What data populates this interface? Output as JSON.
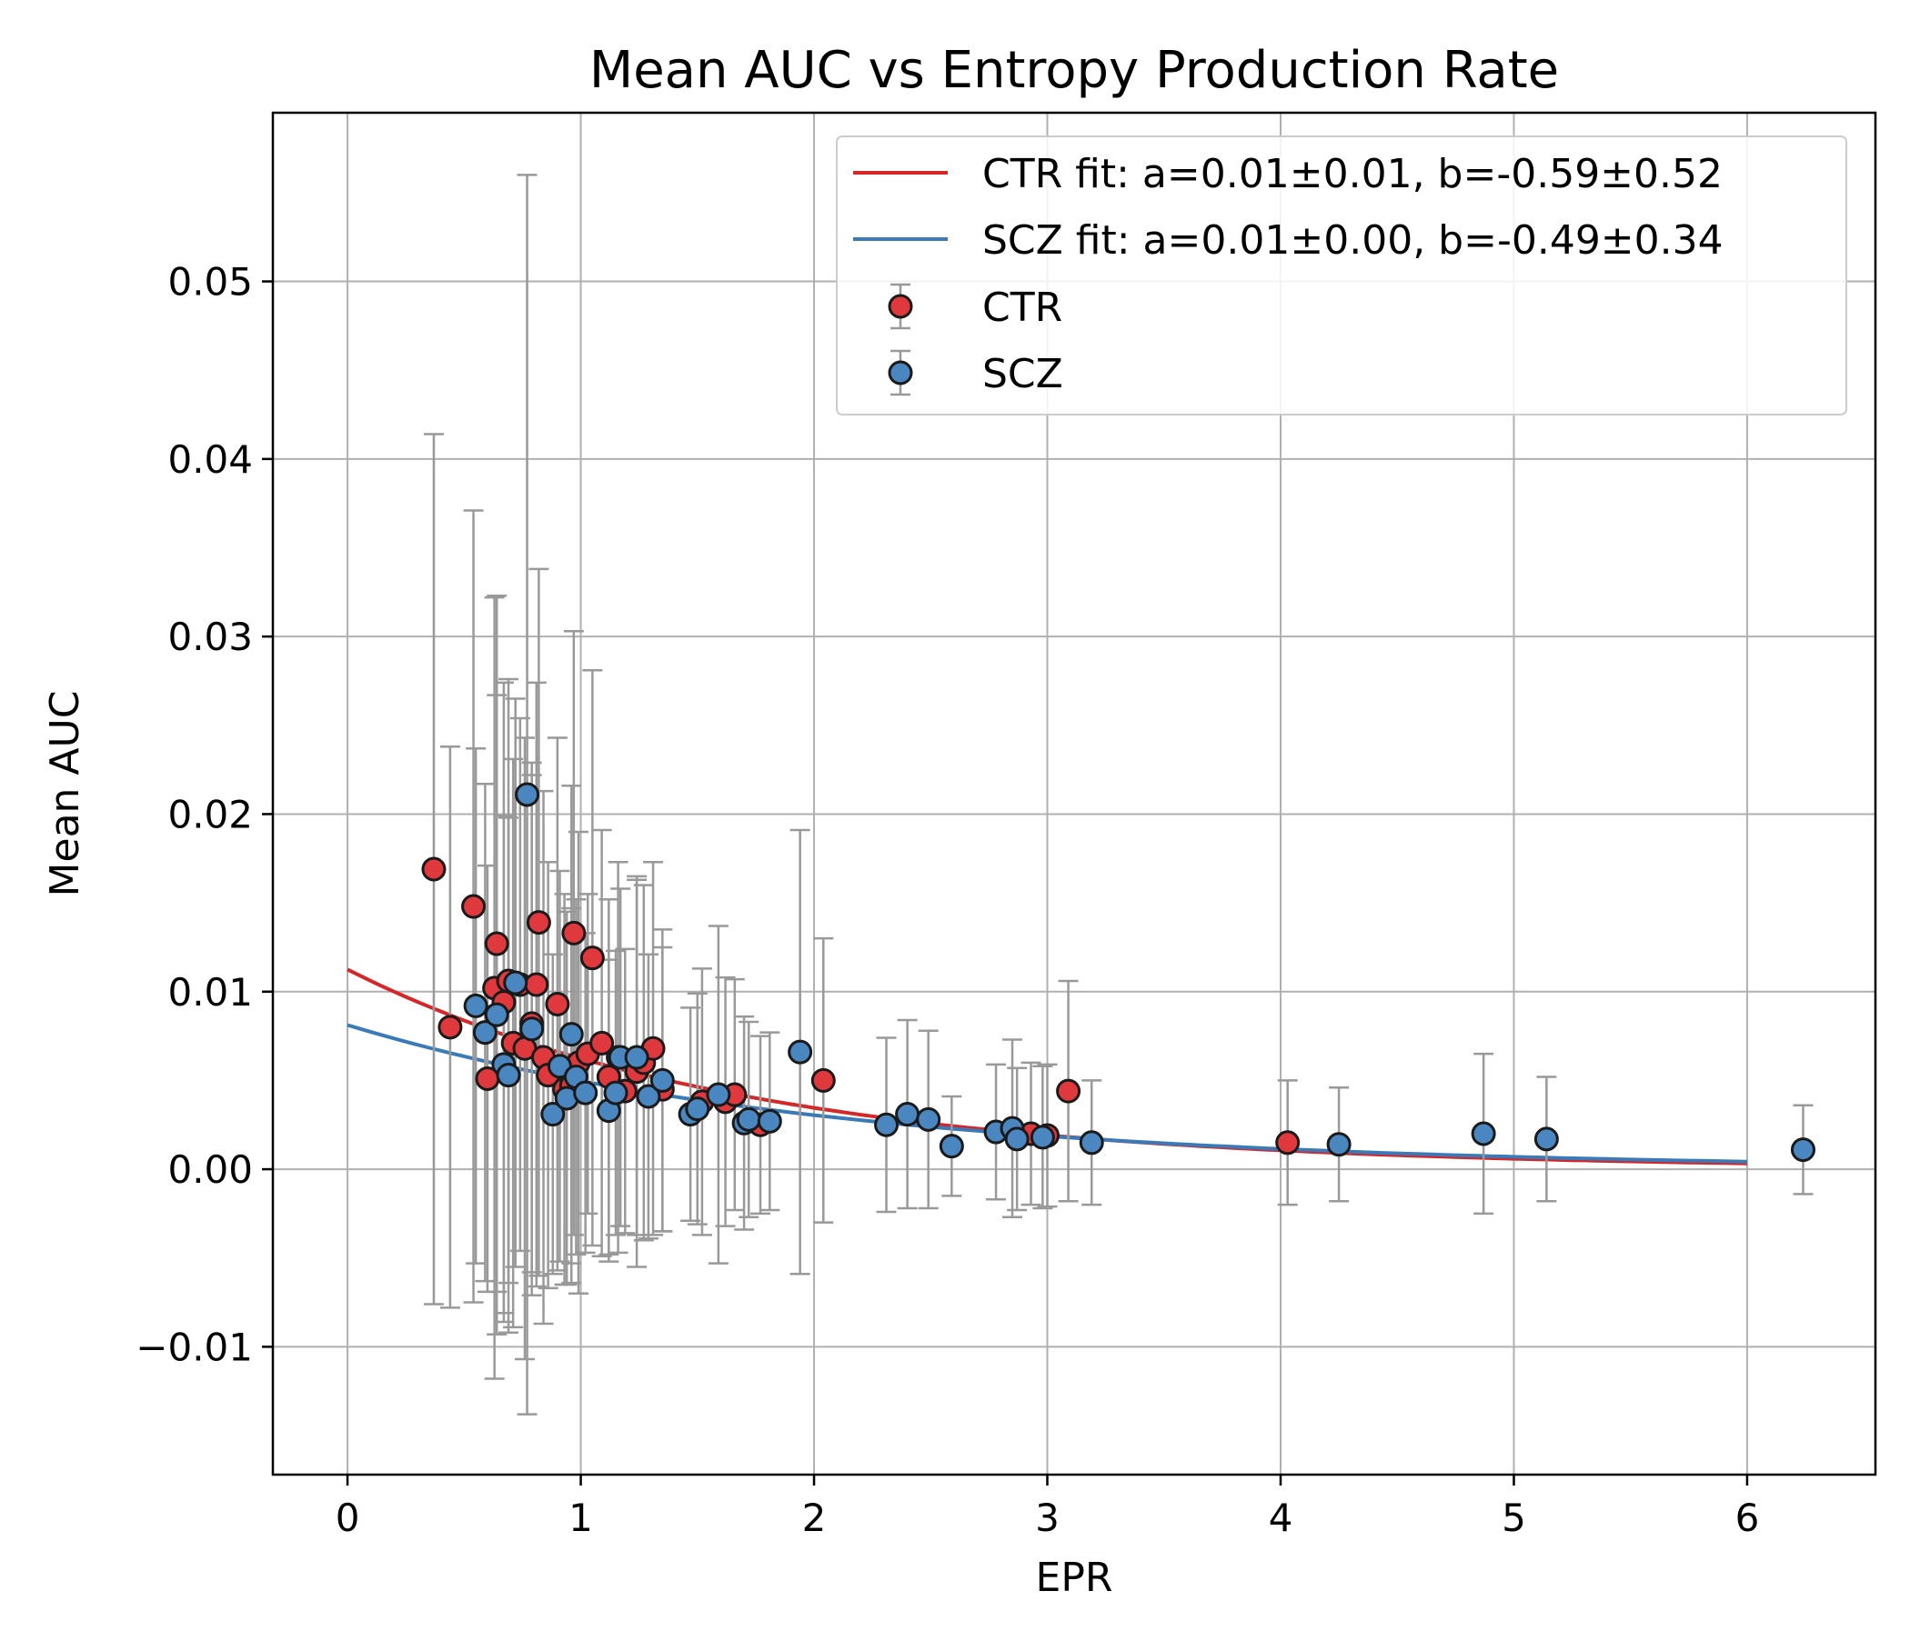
{
  "chart_data": {
    "type": "scatter",
    "title": "Mean AUC vs Entropy Production Rate",
    "xlabel": "EPR",
    "ylabel": "Mean AUC",
    "xlim": [
      -0.32,
      6.55
    ],
    "ylim": [
      -0.0172,
      0.0595
    ],
    "xticks": [
      0,
      1,
      2,
      3,
      4,
      5,
      6
    ],
    "yticks": [
      -0.01,
      0.0,
      0.01,
      0.02,
      0.03,
      0.04,
      0.05
    ],
    "ytick_labels": [
      "−0.01",
      "0.00",
      "0.01",
      "0.02",
      "0.03",
      "0.04",
      "0.05"
    ],
    "grid": true,
    "legend_position": "upper-right",
    "colors": {
      "CTR": "#e0393d",
      "SCZ": "#4a86c0",
      "CTR_fit": "#d62728",
      "SCZ_fit": "#3a7ab8",
      "errorbar": "#999999"
    },
    "fits": [
      {
        "name": "CTR fit: a=0.01±0.01, b=-0.59±0.52",
        "group": "CTR",
        "a": 0.01125,
        "b": -0.59,
        "x_range": [
          0,
          6
        ]
      },
      {
        "name": "SCZ fit: a=0.01±0.00, b=-0.49±0.34",
        "group": "SCZ",
        "a": 0.00812,
        "b": -0.49,
        "x_range": [
          0,
          6
        ]
      }
    ],
    "series": [
      {
        "name": "CTR",
        "points": [
          {
            "x": 0.37,
            "y": 0.0169,
            "err": 0.0245
          },
          {
            "x": 0.44,
            "y": 0.008,
            "err": 0.0158
          },
          {
            "x": 0.54,
            "y": 0.0148,
            "err": 0.0223
          },
          {
            "x": 0.6,
            "y": 0.0051,
            "err": 0.012
          },
          {
            "x": 0.63,
            "y": 0.0102,
            "err": 0.022
          },
          {
            "x": 0.64,
            "y": 0.0127,
            "err": 0.0196
          },
          {
            "x": 0.67,
            "y": 0.0094,
            "err": 0.018
          },
          {
            "x": 0.69,
            "y": 0.0106,
            "err": 0.017
          },
          {
            "x": 0.71,
            "y": 0.0071,
            "err": 0.016
          },
          {
            "x": 0.74,
            "y": 0.0104,
            "err": 0.015
          },
          {
            "x": 0.76,
            "y": 0.0068,
            "err": 0.0175
          },
          {
            "x": 0.79,
            "y": 0.0082,
            "err": 0.014
          },
          {
            "x": 0.81,
            "y": 0.0104,
            "err": 0.017
          },
          {
            "x": 0.82,
            "y": 0.0139,
            "err": 0.0199
          },
          {
            "x": 0.84,
            "y": 0.0063,
            "err": 0.015
          },
          {
            "x": 0.86,
            "y": 0.0053,
            "err": 0.012
          },
          {
            "x": 0.9,
            "y": 0.0093,
            "err": 0.015
          },
          {
            "x": 0.93,
            "y": 0.0045,
            "err": 0.011
          },
          {
            "x": 0.96,
            "y": 0.0047,
            "err": 0.01
          },
          {
            "x": 0.97,
            "y": 0.0133,
            "err": 0.017
          },
          {
            "x": 0.99,
            "y": 0.006,
            "err": 0.013
          },
          {
            "x": 1.03,
            "y": 0.0065,
            "err": 0.009
          },
          {
            "x": 1.05,
            "y": 0.0119,
            "err": 0.0162
          },
          {
            "x": 1.09,
            "y": 0.0071,
            "err": 0.012
          },
          {
            "x": 1.12,
            "y": 0.0052,
            "err": 0.01
          },
          {
            "x": 1.16,
            "y": 0.0063,
            "err": 0.011
          },
          {
            "x": 1.19,
            "y": 0.0044,
            "err": 0.008
          },
          {
            "x": 1.24,
            "y": 0.0055,
            "err": 0.011
          },
          {
            "x": 1.27,
            "y": 0.006,
            "err": 0.01
          },
          {
            "x": 1.31,
            "y": 0.0068,
            "err": 0.0105
          },
          {
            "x": 1.35,
            "y": 0.0045,
            "err": 0.008
          },
          {
            "x": 1.52,
            "y": 0.0038,
            "err": 0.0075
          },
          {
            "x": 1.62,
            "y": 0.0038,
            "err": 0.007
          },
          {
            "x": 1.66,
            "y": 0.0042,
            "err": 0.0065
          },
          {
            "x": 1.77,
            "y": 0.0025,
            "err": 0.005
          },
          {
            "x": 2.04,
            "y": 0.005,
            "err": 0.008
          },
          {
            "x": 2.93,
            "y": 0.002,
            "err": 0.004
          },
          {
            "x": 3.0,
            "y": 0.0019,
            "err": 0.004
          },
          {
            "x": 3.09,
            "y": 0.0044,
            "err": 0.0062
          },
          {
            "x": 4.03,
            "y": 0.0015,
            "err": 0.0035
          }
        ]
      },
      {
        "name": "SCZ",
        "points": [
          {
            "x": 0.55,
            "y": 0.0092,
            "err": 0.0145
          },
          {
            "x": 0.59,
            "y": 0.0077,
            "err": 0.014
          },
          {
            "x": 0.64,
            "y": 0.0087,
            "err": 0.018
          },
          {
            "x": 0.67,
            "y": 0.0059,
            "err": 0.014
          },
          {
            "x": 0.69,
            "y": 0.0053,
            "err": 0.0145
          },
          {
            "x": 0.72,
            "y": 0.0105,
            "err": 0.016
          },
          {
            "x": 0.77,
            "y": 0.0211,
            "err": 0.0349
          },
          {
            "x": 0.79,
            "y": 0.0079,
            "err": 0.015
          },
          {
            "x": 0.88,
            "y": 0.0031,
            "err": 0.009
          },
          {
            "x": 0.91,
            "y": 0.0058,
            "err": 0.011
          },
          {
            "x": 0.94,
            "y": 0.004,
            "err": 0.0105
          },
          {
            "x": 0.96,
            "y": 0.0076,
            "err": 0.014
          },
          {
            "x": 0.98,
            "y": 0.0052,
            "err": 0.01
          },
          {
            "x": 1.02,
            "y": 0.0043,
            "err": 0.009
          },
          {
            "x": 1.12,
            "y": 0.0033,
            "err": 0.0085
          },
          {
            "x": 1.15,
            "y": 0.0043,
            "err": 0.008
          },
          {
            "x": 1.17,
            "y": 0.0063,
            "err": 0.0095
          },
          {
            "x": 1.24,
            "y": 0.0063,
            "err": 0.01
          },
          {
            "x": 1.29,
            "y": 0.0041,
            "err": 0.008
          },
          {
            "x": 1.35,
            "y": 0.005,
            "err": 0.0085
          },
          {
            "x": 1.47,
            "y": 0.0031,
            "err": 0.006
          },
          {
            "x": 1.5,
            "y": 0.0034,
            "err": 0.0065
          },
          {
            "x": 1.59,
            "y": 0.0042,
            "err": 0.0095
          },
          {
            "x": 1.7,
            "y": 0.0026,
            "err": 0.006
          },
          {
            "x": 1.72,
            "y": 0.0028,
            "err": 0.0055
          },
          {
            "x": 1.81,
            "y": 0.0027,
            "err": 0.005
          },
          {
            "x": 1.94,
            "y": 0.0066,
            "err": 0.0125
          },
          {
            "x": 2.31,
            "y": 0.0025,
            "err": 0.0049
          },
          {
            "x": 2.4,
            "y": 0.0031,
            "err": 0.0053
          },
          {
            "x": 2.49,
            "y": 0.0028,
            "err": 0.005
          },
          {
            "x": 2.59,
            "y": 0.0013,
            "err": 0.0028
          },
          {
            "x": 2.78,
            "y": 0.0021,
            "err": 0.0038
          },
          {
            "x": 2.85,
            "y": 0.0023,
            "err": 0.005
          },
          {
            "x": 2.87,
            "y": 0.0017,
            "err": 0.004
          },
          {
            "x": 2.98,
            "y": 0.0018,
            "err": 0.004
          },
          {
            "x": 3.19,
            "y": 0.0015,
            "err": 0.0035
          },
          {
            "x": 4.25,
            "y": 0.0014,
            "err": 0.0032
          },
          {
            "x": 4.87,
            "y": 0.002,
            "err": 0.0045
          },
          {
            "x": 5.14,
            "y": 0.0017,
            "err": 0.0035
          },
          {
            "x": 6.24,
            "y": 0.0011,
            "err": 0.0025
          }
        ]
      }
    ]
  }
}
